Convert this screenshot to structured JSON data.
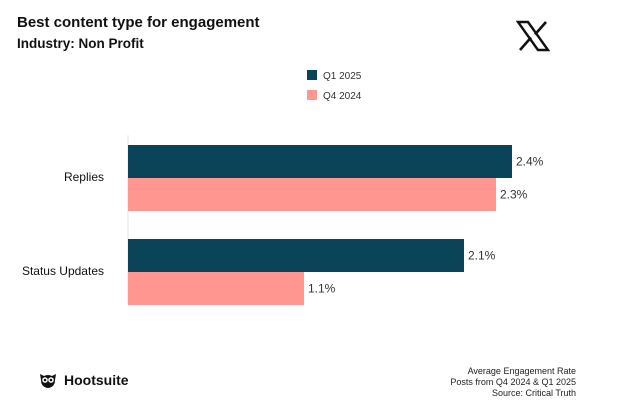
{
  "header": {
    "title": "Best content type for engagement",
    "subtitle": "Industry: Non Profit"
  },
  "platform_icon": "x-logo-icon",
  "brand": {
    "name": "Hootsuite",
    "icon": "owl-icon"
  },
  "footer": {
    "line1": "Average Engagement Rate",
    "line2": "Posts from Q4 2024 & Q1 2025",
    "line3": "Source: Critical Truth"
  },
  "colors": {
    "q1_2025": "#0b4358",
    "q4_2024": "#ff9690"
  },
  "chart_data": {
    "type": "bar",
    "orientation": "horizontal",
    "title": "Best content type for engagement",
    "subtitle": "Industry: Non Profit",
    "categories": [
      "Replies",
      "Status Updates"
    ],
    "series": [
      {
        "name": "Q1 2025",
        "values": [
          2.4,
          2.1
        ],
        "labels": [
          "2.4%",
          "2.1%"
        ]
      },
      {
        "name": "Q4 2024",
        "values": [
          2.3,
          1.1
        ],
        "labels": [
          "2.3%",
          "1.1%"
        ]
      }
    ],
    "xlim": [
      0,
      2.4
    ],
    "xlabel": "Average Engagement Rate",
    "legend_position": "top-center",
    "grid": false
  }
}
